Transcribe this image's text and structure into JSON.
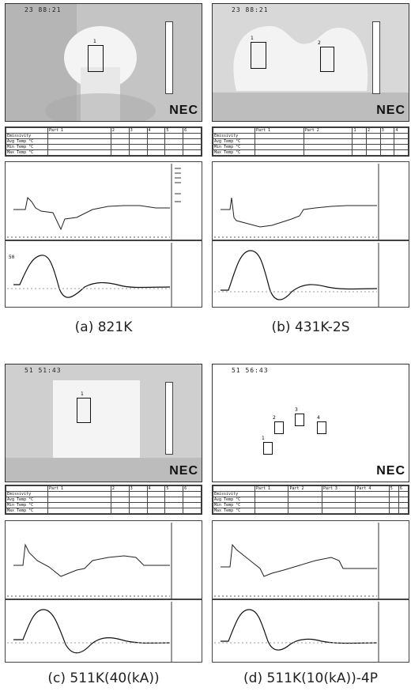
{
  "panels": [
    {
      "id": "a",
      "caption": "(a) 821K",
      "header": "23 88:21",
      "logo": "NEC",
      "table": {
        "columns": [
          "Part 1",
          "2",
          "3",
          "4",
          "5",
          "6"
        ],
        "rows": [
          {
            "label": "Emissivity",
            "values": [
              "",
              "",
              "",
              "",
              "",
              ""
            ]
          },
          {
            "label": "Avg Temp °C",
            "values": [
              "",
              "",
              "",
              "",
              "",
              ""
            ]
          },
          {
            "label": "Min Temp °C",
            "values": [
              "",
              "",
              "",
              "",
              "",
              ""
            ]
          },
          {
            "label": "Max Temp °C",
            "values": [
              "",
              "",
              "",
              "",
              "",
              ""
            ]
          }
        ]
      },
      "roi_labels": [
        "1"
      ],
      "wave_axis_label": "50"
    },
    {
      "id": "b",
      "caption": "(b) 431K-2S",
      "header": "23 88:21",
      "logo": "NEC",
      "table": {
        "columns": [
          "Part 1",
          "Part 2",
          "1",
          "2",
          "3",
          "4"
        ],
        "rows": [
          {
            "label": "Emissivity",
            "values": [
              "",
              "",
              "",
              "",
              "",
              ""
            ]
          },
          {
            "label": "Avg Temp °C",
            "values": [
              "",
              "",
              "",
              "",
              "",
              ""
            ]
          },
          {
            "label": "Min Temp °C",
            "values": [
              "",
              "",
              "",
              "",
              "",
              ""
            ]
          },
          {
            "label": "Max Temp °C",
            "values": [
              "",
              "",
              "",
              "",
              "",
              ""
            ]
          }
        ]
      },
      "roi_labels": [
        "1",
        "2"
      ],
      "wave_axis_label": ""
    },
    {
      "id": "c",
      "caption": "(c) 511K(40(kA))",
      "header": "51 51:43",
      "logo": "NEC",
      "table": {
        "columns": [
          "Part 1",
          "2",
          "3",
          "4",
          "5",
          "6"
        ],
        "rows": [
          {
            "label": "Emissivity",
            "values": [
              "",
              "",
              "",
              "",
              "",
              ""
            ]
          },
          {
            "label": "Avg Temp °C",
            "values": [
              "",
              "",
              "",
              "",
              "",
              ""
            ]
          },
          {
            "label": "Min Temp °C",
            "values": [
              "",
              "",
              "",
              "",
              "",
              ""
            ]
          },
          {
            "label": "Max Temp °C",
            "values": [
              "",
              "",
              "",
              "",
              "",
              ""
            ]
          }
        ]
      },
      "roi_labels": [
        "1"
      ],
      "wave_axis_label": ""
    },
    {
      "id": "d",
      "caption": "(d) 511K(10(kA))-4P",
      "header": "51 56:43",
      "logo": "NEC",
      "table": {
        "columns": [
          "Part 1",
          "Part 2",
          "Part 3",
          "Part 4",
          "5",
          "6"
        ],
        "rows": [
          {
            "label": "Emissivity",
            "values": [
              "",
              "",
              "",
              "",
              "",
              ""
            ]
          },
          {
            "label": "Avg Temp °C",
            "values": [
              "",
              "",
              "",
              "",
              "",
              ""
            ]
          },
          {
            "label": "Min Temp °C",
            "values": [
              "",
              "",
              "",
              "",
              "",
              ""
            ]
          },
          {
            "label": "Max Temp °C",
            "values": [
              "",
              "",
              "",
              "",
              "",
              ""
            ]
          }
        ]
      },
      "roi_labels": [
        "1",
        "2",
        "3",
        "4"
      ],
      "wave_axis_label": ""
    }
  ]
}
